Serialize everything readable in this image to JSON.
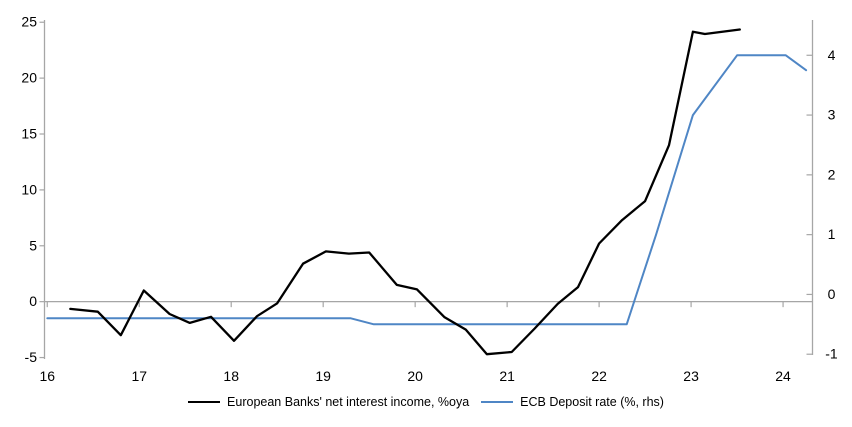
{
  "chart_data": {
    "type": "line",
    "title": "",
    "x_axis": {
      "ticks": [
        16,
        17,
        18,
        19,
        20,
        21,
        22,
        23,
        24
      ],
      "range": [
        15.97,
        24.32
      ]
    },
    "left_axis": {
      "ticks": [
        25,
        20,
        15,
        10,
        5,
        0,
        -5
      ],
      "range": [
        -5.13,
        25.2
      ]
    },
    "right_axis": {
      "ticks": [
        4,
        3,
        2,
        1,
        0,
        -1
      ],
      "range": [
        -1.08,
        4.59
      ]
    },
    "grid": "zero-line-only",
    "legend_position": "bottom-center",
    "colors": {
      "axis": "#a6a6a6",
      "zero_line": "#a6a6a6",
      "text": "#000000",
      "series_black": "#000000",
      "series_blue": "#4f86c5"
    },
    "series": [
      {
        "name": "European Banks' net interest income, %oya",
        "axis": "left",
        "color": "#000000",
        "stroke_width": 2.3,
        "points": [
          [
            16.25,
            -0.65
          ],
          [
            16.55,
            -0.9
          ],
          [
            16.8,
            -3.0
          ],
          [
            17.05,
            1.0
          ],
          [
            17.33,
            -1.1
          ],
          [
            17.55,
            -1.9
          ],
          [
            17.78,
            -1.35
          ],
          [
            18.03,
            -3.5
          ],
          [
            18.28,
            -1.3
          ],
          [
            18.5,
            -0.15
          ],
          [
            18.78,
            3.4
          ],
          [
            19.03,
            4.5
          ],
          [
            19.28,
            4.3
          ],
          [
            19.5,
            4.4
          ],
          [
            19.8,
            1.5
          ],
          [
            20.02,
            1.1
          ],
          [
            20.32,
            -1.4
          ],
          [
            20.55,
            -2.5
          ],
          [
            20.78,
            -4.7
          ],
          [
            21.05,
            -4.5
          ],
          [
            21.3,
            -2.4
          ],
          [
            21.55,
            -0.2
          ],
          [
            21.77,
            1.3
          ],
          [
            22.0,
            5.2
          ],
          [
            22.25,
            7.3
          ],
          [
            22.5,
            9.0
          ],
          [
            22.76,
            14.0
          ],
          [
            23.02,
            24.15
          ],
          [
            23.15,
            23.95
          ],
          [
            23.53,
            24.35
          ]
        ]
      },
      {
        "name": "ECB Deposit rate (%, rhs)",
        "axis": "right",
        "color": "#4f86c5",
        "stroke_width": 2.0,
        "points": [
          [
            16.0,
            -0.4
          ],
          [
            19.3,
            -0.4
          ],
          [
            19.55,
            -0.5
          ],
          [
            22.3,
            -0.5
          ],
          [
            22.62,
            1.0
          ],
          [
            23.02,
            3.0
          ],
          [
            23.5,
            4.0
          ],
          [
            24.03,
            4.0
          ],
          [
            24.25,
            3.75
          ]
        ]
      }
    ]
  }
}
